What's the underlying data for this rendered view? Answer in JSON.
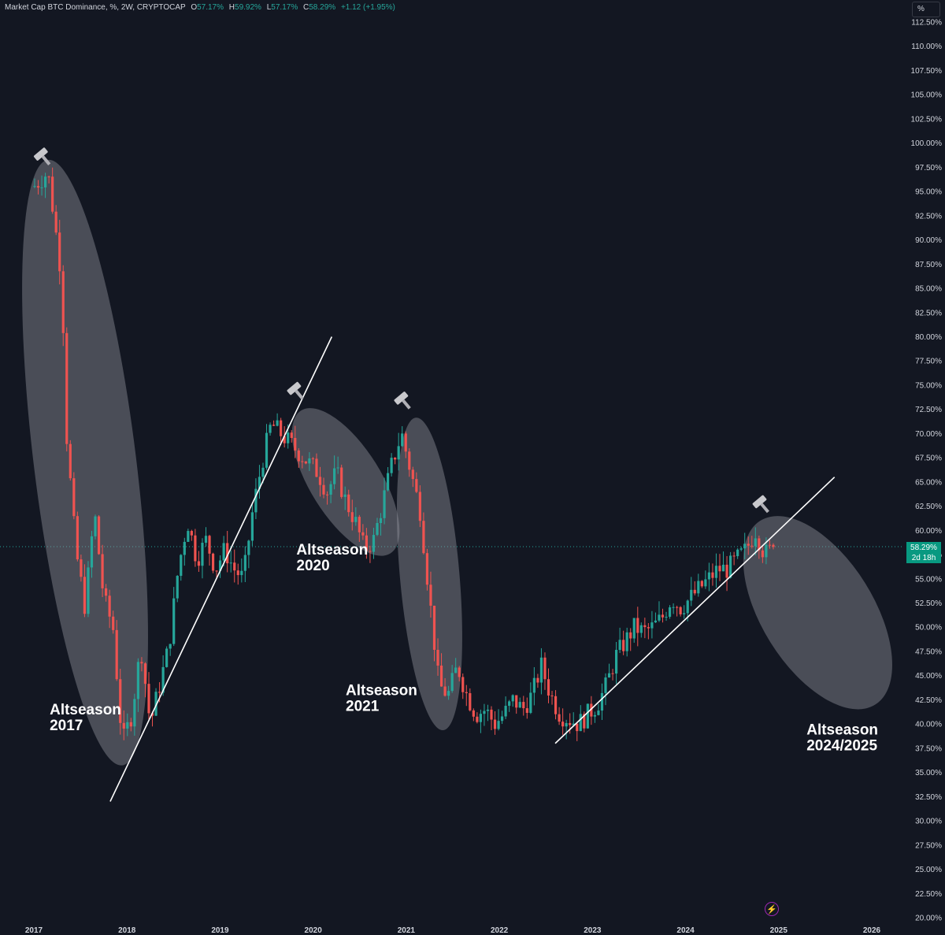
{
  "header": {
    "title": "Market Cap BTC Dominance, %, 2W, CRYPTOCAP",
    "o_label": "O",
    "o_value": "57.17%",
    "h_label": "H",
    "h_value": "59.92%",
    "l_label": "L",
    "l_value": "57.17%",
    "c_label": "C",
    "c_value": "58.29%",
    "change": "+1.12 (+1.95%)"
  },
  "scale_button": "%",
  "price_tag": {
    "value": "58.29%",
    "countdown": "2d 18h"
  },
  "colors": {
    "background": "#131722",
    "up": "#26a69a",
    "down": "#ef5350",
    "ellipse": "#9598a1",
    "trendline": "#ffffff"
  },
  "icons": {
    "hammer": "hammer-icon",
    "replay": "lightning-icon"
  },
  "chart_data": {
    "type": "candlestick",
    "title": "Market Cap BTC Dominance, %, 2W, CRYPTOCAP",
    "interval": "2W",
    "ylim": [
      20,
      112.5
    ],
    "y_ticks": [
      "112.50%",
      "110.00%",
      "107.50%",
      "105.00%",
      "102.50%",
      "100.00%",
      "97.50%",
      "95.00%",
      "92.50%",
      "90.00%",
      "87.50%",
      "85.00%",
      "82.50%",
      "80.00%",
      "77.50%",
      "75.00%",
      "72.50%",
      "70.00%",
      "67.50%",
      "65.00%",
      "62.50%",
      "60.00%",
      "57.50%",
      "55.00%",
      "52.50%",
      "50.00%",
      "47.50%",
      "45.00%",
      "42.50%",
      "40.00%",
      "37.50%",
      "35.00%",
      "32.50%",
      "30.00%",
      "27.50%",
      "25.00%",
      "22.50%",
      "20.00%"
    ],
    "x_ticks": [
      "2017",
      "2018",
      "2019",
      "2020",
      "2021",
      "2022",
      "2023",
      "2024",
      "2025",
      "2026"
    ],
    "xlim": [
      2016.97,
      2026.3
    ],
    "current_close": 58.29,
    "path": [
      [
        2017.0,
        95.5
      ],
      [
        2017.15,
        97.0
      ],
      [
        2017.2,
        93.5
      ],
      [
        2017.3,
        86
      ],
      [
        2017.35,
        70
      ],
      [
        2017.45,
        58
      ],
      [
        2017.55,
        52
      ],
      [
        2017.65,
        62
      ],
      [
        2017.75,
        53
      ],
      [
        2017.85,
        50
      ],
      [
        2017.95,
        38
      ],
      [
        2018.05,
        41
      ],
      [
        2018.15,
        48
      ],
      [
        2018.25,
        40
      ],
      [
        2018.35,
        44
      ],
      [
        2018.45,
        48
      ],
      [
        2018.55,
        56
      ],
      [
        2018.65,
        61
      ],
      [
        2018.75,
        57
      ],
      [
        2018.85,
        59
      ],
      [
        2018.95,
        56
      ],
      [
        2019.05,
        58
      ],
      [
        2019.15,
        56
      ],
      [
        2019.25,
        55
      ],
      [
        2019.35,
        62
      ],
      [
        2019.45,
        67
      ],
      [
        2019.55,
        71
      ],
      [
        2019.65,
        70
      ],
      [
        2019.75,
        69
      ],
      [
        2019.85,
        68
      ],
      [
        2019.95,
        67
      ],
      [
        2020.05,
        66
      ],
      [
        2020.15,
        64
      ],
      [
        2020.25,
        66
      ],
      [
        2020.35,
        63
      ],
      [
        2020.45,
        61
      ],
      [
        2020.55,
        58
      ],
      [
        2020.65,
        59
      ],
      [
        2020.75,
        63
      ],
      [
        2020.85,
        67
      ],
      [
        2020.95,
        70
      ],
      [
        2021.05,
        66
      ],
      [
        2021.15,
        62
      ],
      [
        2021.25,
        53
      ],
      [
        2021.35,
        44
      ],
      [
        2021.45,
        43
      ],
      [
        2021.55,
        46
      ],
      [
        2021.65,
        43
      ],
      [
        2021.75,
        41
      ],
      [
        2021.85,
        41.5
      ],
      [
        2021.95,
        40
      ],
      [
        2022.05,
        41
      ],
      [
        2022.15,
        42.5
      ],
      [
        2022.25,
        41.5
      ],
      [
        2022.35,
        43
      ],
      [
        2022.45,
        46
      ],
      [
        2022.55,
        43
      ],
      [
        2022.65,
        41
      ],
      [
        2022.75,
        40.5
      ],
      [
        2022.85,
        40
      ],
      [
        2022.95,
        41
      ],
      [
        2023.05,
        42
      ],
      [
        2023.15,
        44
      ],
      [
        2023.25,
        47
      ],
      [
        2023.35,
        48.5
      ],
      [
        2023.45,
        50
      ],
      [
        2023.55,
        49.5
      ],
      [
        2023.65,
        50
      ],
      [
        2023.75,
        51
      ],
      [
        2023.85,
        53
      ],
      [
        2023.95,
        52
      ],
      [
        2024.05,
        53
      ],
      [
        2024.15,
        54
      ],
      [
        2024.25,
        55
      ],
      [
        2024.35,
        56
      ],
      [
        2024.45,
        56
      ],
      [
        2024.55,
        57
      ],
      [
        2024.65,
        58
      ],
      [
        2024.75,
        60
      ],
      [
        2024.85,
        57.5
      ],
      [
        2024.95,
        58.29
      ]
    ],
    "trendlines": [
      [
        [
          2017.82,
          32
        ],
        [
          2020.2,
          80
        ]
      ],
      [
        [
          2022.6,
          38
        ],
        [
          2025.6,
          65.5
        ]
      ]
    ],
    "ellipses": [
      {
        "cx": 2017.55,
        "cy": 67.0,
        "rx": 0.55,
        "ry": 31.5,
        "angle": -7
      },
      {
        "cx": 2020.35,
        "cy": 65.0,
        "rx": 0.38,
        "ry": 8.7,
        "angle": -32
      },
      {
        "cx": 2021.25,
        "cy": 55.5,
        "rx": 0.32,
        "ry": 16.2,
        "angle": -5
      },
      {
        "cx": 2025.42,
        "cy": 51.5,
        "rx": 0.6,
        "ry": 11.2,
        "angle": -32
      }
    ],
    "hammer_markers": [
      [
        2017.08,
        98.8
      ],
      [
        2019.8,
        74.6
      ],
      [
        2020.95,
        73.6
      ],
      [
        2024.8,
        62.9
      ]
    ],
    "annotations": [
      {
        "text": [
          "Altseason",
          "2017"
        ],
        "x": 2017.17,
        "y": 41.0
      },
      {
        "text": [
          "Altseason",
          "2020"
        ],
        "x": 2019.82,
        "y": 57.5
      },
      {
        "text": [
          "Altseason",
          "2021"
        ],
        "x": 2020.35,
        "y": 43.0
      },
      {
        "text": [
          "Altseason",
          "2024/2025"
        ],
        "x": 2025.3,
        "y": 38.9
      }
    ]
  }
}
